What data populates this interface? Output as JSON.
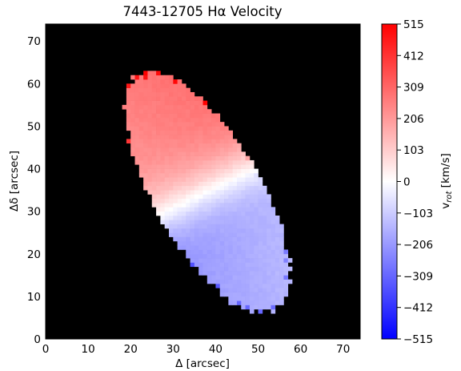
{
  "chart_data": {
    "type": "heatmap",
    "title": "7443-12705 Hα Velocity",
    "xlabel": "Δ [arcsec]",
    "ylabel": "Δδ [arcsec]",
    "xlim": [
      0,
      74
    ],
    "ylim": [
      0,
      74
    ],
    "xticks": [
      "0",
      "10",
      "20",
      "30",
      "40",
      "50",
      "60",
      "70"
    ],
    "yticks": [
      "0",
      "10",
      "20",
      "30",
      "40",
      "50",
      "60",
      "70"
    ],
    "background_color": "#000000",
    "colormap": "bwr",
    "colorbar": {
      "label_main": "v",
      "label_sub": "rot",
      "label_unit": " [km/s]",
      "range": [
        -515,
        515
      ],
      "ticks": [
        "515",
        "412",
        "309",
        "206",
        "103",
        "0",
        "−103",
        "−206",
        "−309",
        "−412",
        "−515"
      ]
    },
    "velocity_field": {
      "center": [
        38,
        34.5
      ],
      "position_angle_deg": 30,
      "semi_major_arcsec": 32,
      "semi_minor_arcsec": 12.5,
      "peak_receding_kms": 206,
      "peak_approaching_kms": -230,
      "receding_side": "upper-left",
      "approaching_side": "lower-right"
    }
  }
}
